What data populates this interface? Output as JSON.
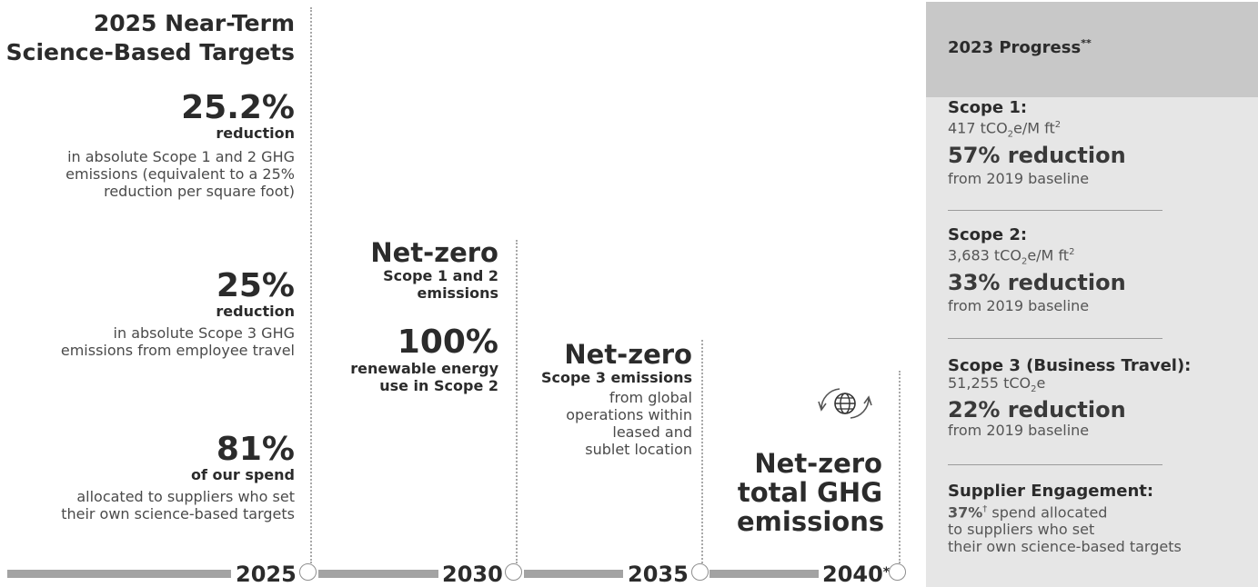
{
  "targets_2025": {
    "heading_line1": "2025 Near-Term",
    "heading_line2": "Science-Based Targets",
    "t1": {
      "value": "25.2%",
      "label": "reduction",
      "desc_line1": "in absolute Scope 1 and 2 GHG",
      "desc_line2": "emissions (equivalent to a 25%",
      "desc_line3": "reduction per square foot)"
    },
    "t2": {
      "value": "25%",
      "label": "reduction",
      "desc_line1": "in absolute Scope 3 GHG",
      "desc_line2": "emissions from employee travel"
    },
    "t3": {
      "value": "81%",
      "label": "of our spend",
      "desc_line1": "allocated to suppliers who set",
      "desc_line2": "their own science-based targets"
    }
  },
  "targets_2030": {
    "heading": "Net-zero",
    "sub_line1": "Scope 1 and 2",
    "sub_line2": "emissions",
    "value": "100%",
    "value_line1": "renewable energy",
    "value_line2": "use in Scope 2"
  },
  "targets_2035": {
    "heading": "Net-zero",
    "sub": "Scope 3 emissions",
    "desc_line1": "from global",
    "desc_line2": "operations within",
    "desc_line3": "leased and",
    "desc_line4": "sublet location"
  },
  "targets_2040": {
    "icon": "globe-cycle-icon",
    "line1": "Net-zero",
    "line2": "total GHG",
    "line3": "emissions"
  },
  "timeline": {
    "y2025": "2025",
    "y2030": "2030",
    "y2035": "2035",
    "y2040": "2040",
    "y2040_mark": "*",
    "bar_color": "#a3a3a3"
  },
  "progress": {
    "title": "2023 Progress",
    "title_mark": "**",
    "header_color": "#c8c8c8",
    "panel_color": "#e6e6e6",
    "scope1": {
      "label": "Scope 1:",
      "value_pre": "417 tCO",
      "value_sub": "2",
      "value_post": "e/M ft",
      "value_sup": "2",
      "reduction": "57% reduction",
      "baseline": "from 2019 baseline"
    },
    "scope2": {
      "label": "Scope 2:",
      "value_pre": "3,683 tCO",
      "value_sub": "2",
      "value_post": "e/M ft",
      "value_sup": "2",
      "reduction": "33% reduction",
      "baseline": "from 2019 baseline"
    },
    "scope3": {
      "label": "Scope 3 (Business Travel):",
      "value_pre": "51,255 tCO",
      "value_sub": "2",
      "value_post": "e",
      "reduction": "22% reduction",
      "baseline": "from 2019 baseline"
    },
    "supplier": {
      "label": "Supplier Engagement:",
      "value": "37%",
      "value_mark": "†",
      "text_line1": " spend allocated",
      "text_line2": "to suppliers who set",
      "text_line3": "their own science-based targets"
    }
  }
}
